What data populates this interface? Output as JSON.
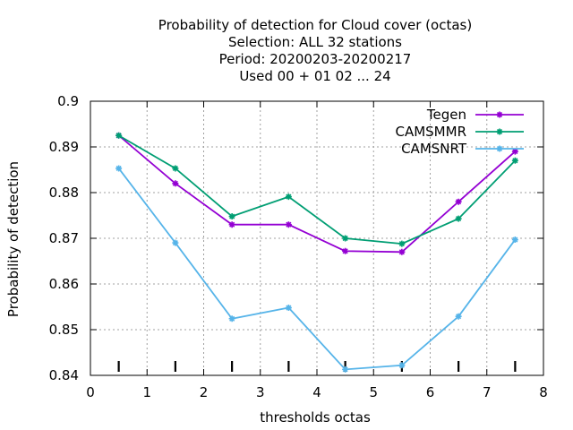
{
  "chart_data": {
    "type": "line",
    "title_lines": [
      "Probability of detection  for Cloud cover (octas)",
      "Selection: ALL     32 stations",
      "Period: 20200203-20200217",
      "Used  00 + 01 02 ... 24"
    ],
    "xlabel": "thresholds octas",
    "ylabel": "Probability of detection",
    "xlim": [
      0,
      8
    ],
    "ylim": [
      0.84,
      0.9
    ],
    "xticks": [
      "0",
      "1",
      "2",
      "3",
      "4",
      "5",
      "6",
      "7",
      "8"
    ],
    "yticks": [
      "0.84",
      "0.85",
      "0.86",
      "0.87",
      "0.88",
      "0.89",
      "0.9"
    ],
    "grid": true,
    "legend_position": "top-right",
    "x": [
      0.5,
      1.5,
      2.5,
      3.5,
      4.5,
      5.5,
      6.5,
      7.5
    ],
    "series": [
      {
        "name": "Tegen",
        "color": "#9400d3",
        "values": [
          0.8925,
          0.882,
          0.873,
          0.873,
          0.8672,
          0.867,
          0.878,
          0.889
        ]
      },
      {
        "name": "CAMSMMR",
        "color": "#009e73",
        "values": [
          0.8925,
          0.8853,
          0.8748,
          0.8791,
          0.87,
          0.8688,
          0.8743,
          0.887
        ]
      },
      {
        "name": "CAMSNRT",
        "color": "#56b4e9",
        "values": [
          0.8853,
          0.869,
          0.8524,
          0.8548,
          0.8413,
          0.8422,
          0.8529,
          0.8697
        ]
      }
    ],
    "sample_marks_x": [
      0.5,
      1.5,
      2.5,
      3.5,
      4.5,
      5.5,
      6.5,
      7.5
    ]
  }
}
